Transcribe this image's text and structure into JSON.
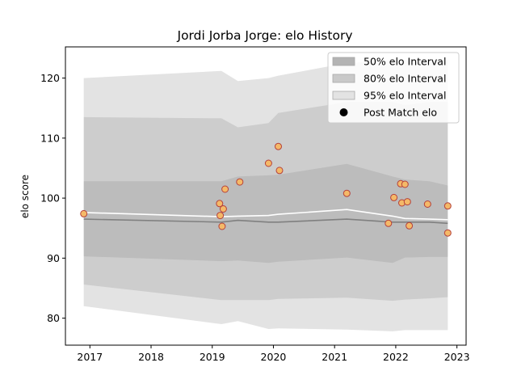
{
  "chart_data": {
    "type": "scatter",
    "title": "Jordi Jorba Jorge: elo History",
    "xlabel": "",
    "ylabel": "elo score",
    "xlim": [
      2016.6,
      2023.15
    ],
    "ylim": [
      75.5,
      125.2
    ],
    "x_ticks": [
      "2017",
      "2018",
      "2019",
      "2020",
      "2021",
      "2022",
      "2023"
    ],
    "y_ticks": [
      "80",
      "90",
      "100",
      "110",
      "120"
    ],
    "grid": false,
    "legend_position": "top-right",
    "legend": [
      {
        "label": "50% elo Interval",
        "color": "#b3b3b3"
      },
      {
        "label": "80% elo Interval",
        "color": "#c9c9c9"
      },
      {
        "label": "95% elo Interval",
        "color": "#e3e3e3"
      },
      {
        "label": "Post Match elo",
        "color": "#000000"
      }
    ],
    "band_x": [
      2016.9,
      2019.15,
      2019.42,
      2019.92,
      2020.08,
      2021.2,
      2021.95,
      2022.15,
      2022.55,
      2022.85
    ],
    "mean": [
      96.5,
      96.0,
      96.3,
      96.0,
      96.0,
      96.5,
      96.0,
      96.0,
      96.0,
      95.8
    ],
    "rating": [
      97.6,
      96.9,
      97.0,
      97.1,
      97.3,
      98.1,
      97.0,
      96.6,
      96.5,
      96.4
    ],
    "band_50": {
      "lower": [
        90.3,
        89.5,
        89.6,
        89.2,
        89.4,
        90.1,
        89.2,
        90.1,
        90.2,
        90.2
      ],
      "upper": [
        102.8,
        102.8,
        103.6,
        103.8,
        103.9,
        105.7,
        103.6,
        103.1,
        102.8,
        102.1
      ]
    },
    "band_80": {
      "lower": [
        85.6,
        83.0,
        83.0,
        83.0,
        83.2,
        83.4,
        82.9,
        83.1,
        83.3,
        83.5
      ],
      "upper": [
        113.5,
        113.3,
        111.8,
        112.5,
        114.2,
        116.0,
        116.0,
        115.5,
        116.0,
        116.0
      ]
    },
    "band_95": {
      "lower": [
        82.0,
        79.0,
        79.5,
        78.2,
        78.3,
        78.1,
        77.8,
        78.0,
        78.0,
        78.0
      ],
      "upper": [
        120.0,
        121.2,
        119.5,
        120.0,
        120.4,
        122.5,
        123.0,
        123.0,
        123.0,
        123.0
      ]
    },
    "series": [
      {
        "name": "Post Match elo",
        "points": [
          {
            "x": 2016.9,
            "y": 97.4
          },
          {
            "x": 2019.12,
            "y": 99.1
          },
          {
            "x": 2019.13,
            "y": 97.1
          },
          {
            "x": 2019.16,
            "y": 95.3
          },
          {
            "x": 2019.18,
            "y": 98.2
          },
          {
            "x": 2019.21,
            "y": 101.5
          },
          {
            "x": 2019.45,
            "y": 102.7
          },
          {
            "x": 2019.92,
            "y": 105.8
          },
          {
            "x": 2020.08,
            "y": 108.6
          },
          {
            "x": 2020.1,
            "y": 104.6
          },
          {
            "x": 2021.2,
            "y": 100.8
          },
          {
            "x": 2021.88,
            "y": 95.8
          },
          {
            "x": 2021.97,
            "y": 100.1
          },
          {
            "x": 2022.08,
            "y": 102.4
          },
          {
            "x": 2022.1,
            "y": 99.2
          },
          {
            "x": 2022.15,
            "y": 102.3
          },
          {
            "x": 2022.19,
            "y": 99.4
          },
          {
            "x": 2022.22,
            "y": 95.4
          },
          {
            "x": 2022.52,
            "y": 99.0
          },
          {
            "x": 2022.85,
            "y": 98.7
          },
          {
            "x": 2022.85,
            "y": 94.2
          }
        ]
      }
    ]
  }
}
